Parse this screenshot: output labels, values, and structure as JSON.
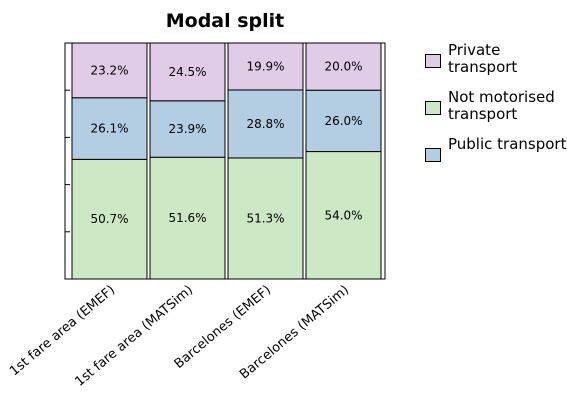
{
  "chart_data": {
    "type": "stacked_bar",
    "title": "Modal split",
    "categories": [
      "1st fare area (EMEF)",
      "1st fare area (MATSim)",
      "Barcelones (EMEF)",
      "Barcelones (MATSim)"
    ],
    "series": [
      {
        "name": "Not motorised transport",
        "color": "#cce8c4",
        "values": [
          50.7,
          51.6,
          51.3,
          54.0
        ],
        "value_labels": [
          "50.7%",
          "51.6%",
          "51.3%",
          "54.0%"
        ]
      },
      {
        "name": "Public transport",
        "color": "#b3cde3",
        "values": [
          26.1,
          23.9,
          28.8,
          26.0
        ],
        "value_labels": [
          "26.1%",
          "23.9%",
          "28.8%",
          "26.0%"
        ]
      },
      {
        "name": "Private transport",
        "color": "#e0cce6",
        "values": [
          23.2,
          24.5,
          19.9,
          20.0
        ],
        "value_labels": [
          "23.2%",
          "24.5%",
          "19.9%",
          "20.0%"
        ]
      }
    ],
    "legend_order": [
      2,
      0,
      1
    ],
    "ylim": [
      0,
      100
    ],
    "yticks": [
      0,
      20,
      40,
      60,
      80,
      100
    ]
  }
}
